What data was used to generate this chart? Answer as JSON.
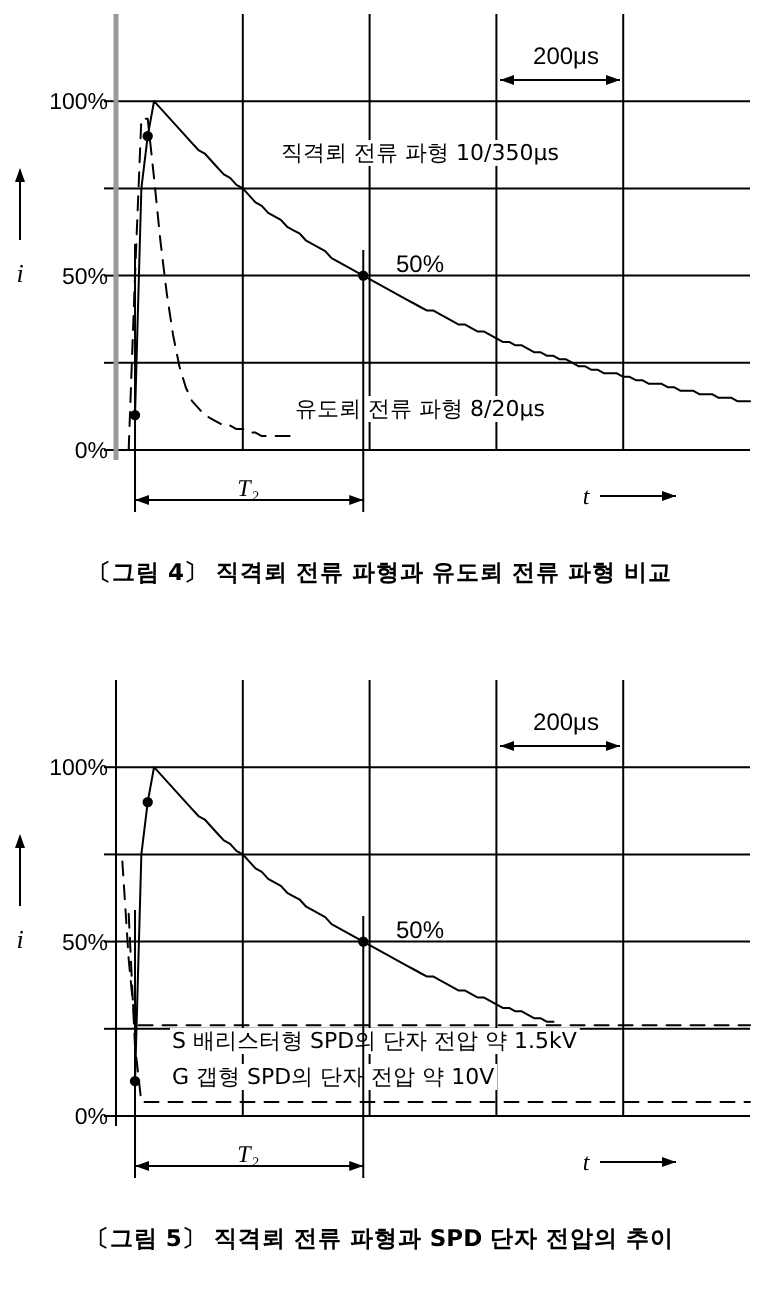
{
  "chart_data": [
    {
      "type": "line",
      "title": "〔그림 4〕 직격뢰 전류 파형과 유도뢰 전류 파형 비교",
      "xlabel": "t",
      "ylabel": "i",
      "grid": true,
      "ylim": [
        0,
        125
      ],
      "yticks": [
        {
          "value": 0,
          "label": "0%"
        },
        {
          "value": 25,
          "label": null
        },
        {
          "value": 50,
          "label": "50%"
        },
        {
          "value": 75,
          "label": null
        },
        {
          "value": 100,
          "label": "100%"
        }
      ],
      "annotations": [
        "50%",
        "200μs",
        "T₂"
      ],
      "categories": [
        null,
        null,
        null,
        null,
        null,
        null,
        null,
        null,
        null,
        null,
        null,
        null,
        null,
        null,
        null,
        null,
        null,
        null,
        null,
        null,
        null,
        null,
        null,
        null,
        null,
        null,
        null,
        null,
        null,
        null,
        null,
        null,
        null,
        null,
        null,
        null,
        null,
        null,
        null,
        null,
        null,
        null,
        null,
        null,
        null,
        null,
        null,
        null,
        null,
        null,
        null,
        null,
        null,
        null,
        null,
        null,
        null,
        null,
        null,
        null,
        null,
        null,
        null,
        null,
        null,
        null,
        null,
        null,
        null,
        null,
        null,
        null,
        null,
        null,
        null,
        null,
        null,
        null,
        null,
        null,
        null,
        null,
        null,
        null,
        null,
        null,
        null,
        null,
        null,
        null,
        null,
        null,
        null,
        null,
        null,
        null,
        null,
        null,
        null,
        null,
        null
      ],
      "series": [
        {
          "name": "직격뢰 전류 파형 10/350μs",
          "color": "#000000",
          "line_style": "solid",
          "values": [
            null,
            null,
            null,
            10,
            75,
            90,
            100,
            98,
            96,
            94,
            92,
            90,
            88,
            86,
            85,
            83,
            81,
            79,
            78,
            76,
            75,
            73,
            71,
            70,
            68,
            67,
            66,
            64,
            63,
            62,
            60,
            59,
            58,
            57,
            55,
            54,
            53,
            52,
            51,
            50,
            49,
            48,
            47,
            46,
            45,
            44,
            43,
            42,
            41,
            40,
            40,
            39,
            38,
            37,
            36,
            36,
            35,
            34,
            34,
            33,
            32,
            31,
            31,
            30,
            30,
            29,
            28,
            28,
            27,
            27,
            26,
            26,
            25,
            24,
            24,
            23,
            23,
            22,
            22,
            22,
            21,
            21,
            20,
            20,
            19,
            19,
            19,
            18,
            18,
            17,
            17,
            17,
            16,
            16,
            16,
            15,
            15,
            15,
            14,
            14,
            14
          ]
        },
        {
          "name": "유도뢰 전류 파형 8/20μs",
          "color": "#000000",
          "line_style": "dashed",
          "values": [
            null,
            null,
            0,
            50,
            95,
            95,
            78,
            60,
            45,
            33,
            24,
            18,
            14,
            12,
            10,
            9,
            8,
            7,
            7,
            6,
            6,
            5,
            5,
            4,
            4,
            4,
            4,
            4,
            4,
            null,
            null,
            null,
            null,
            null,
            null,
            null,
            null,
            null,
            null,
            null,
            null,
            null,
            null,
            null,
            null,
            null,
            null,
            null,
            null,
            null,
            null,
            null,
            null,
            null,
            null,
            null,
            null,
            null,
            null,
            null,
            null,
            null,
            null,
            null,
            null,
            null,
            null,
            null,
            null,
            null,
            null,
            null,
            null,
            null,
            null,
            null,
            null,
            null,
            null,
            null,
            null,
            null,
            null,
            null,
            null,
            null,
            null,
            null,
            null,
            null,
            null,
            null,
            null,
            null,
            null,
            null,
            null,
            null,
            null,
            null,
            null
          ]
        },
        {
          "type": "scatter",
          "color": "#000000",
          "marker": "circle",
          "values": [
            null,
            null,
            null,
            10,
            null,
            90,
            null,
            null,
            null,
            null,
            null,
            null,
            null,
            null,
            null,
            null,
            null,
            null,
            null,
            null,
            null,
            null,
            null,
            null,
            null,
            null,
            null,
            null,
            null,
            null,
            null,
            null,
            null,
            null,
            null,
            null,
            null,
            null,
            null,
            50,
            null,
            null,
            null,
            null,
            null,
            null,
            null,
            null,
            null,
            null,
            null,
            null,
            null,
            null,
            null,
            null,
            null,
            null,
            null,
            null,
            null,
            null,
            null,
            null,
            null,
            null,
            null,
            null,
            null,
            null,
            null,
            null,
            null,
            null,
            null,
            null,
            null,
            null,
            null,
            null,
            null,
            null,
            null,
            null,
            null,
            null,
            null,
            null,
            null,
            null,
            null,
            null,
            null,
            null,
            null,
            null,
            null,
            null,
            null,
            null,
            null
          ]
        }
      ]
    },
    {
      "type": "line",
      "title": "〔그림 5〕 직격뢰 전류 파형과 SPD 단자 전압의 추이",
      "xlabel": "t",
      "ylabel": "i",
      "grid": true,
      "ylim": [
        0,
        125
      ],
      "yticks": [
        {
          "value": 0,
          "label": "0%"
        },
        {
          "value": 25,
          "label": null
        },
        {
          "value": 50,
          "label": "50%"
        },
        {
          "value": 75,
          "label": null
        },
        {
          "value": 100,
          "label": "100%"
        }
      ],
      "annotations": [
        "50%",
        "200μs",
        "T₂"
      ],
      "categories": [
        null,
        null,
        null,
        null,
        null,
        null,
        null,
        null,
        null,
        null,
        null,
        null,
        null,
        null,
        null,
        null,
        null,
        null,
        null,
        null,
        null,
        null,
        null,
        null,
        null,
        null,
        null,
        null,
        null,
        null,
        null,
        null,
        null,
        null,
        null,
        null,
        null,
        null,
        null,
        null,
        null,
        null,
        null,
        null,
        null,
        null,
        null,
        null,
        null,
        null,
        null,
        null,
        null,
        null,
        null,
        null,
        null,
        null,
        null,
        null,
        null,
        null,
        null,
        null,
        null,
        null,
        null,
        null,
        null,
        null,
        null,
        null,
        null,
        null,
        null,
        null,
        null,
        null,
        null,
        null,
        null,
        null,
        null,
        null,
        null,
        null,
        null,
        null,
        null,
        null,
        null,
        null,
        null,
        null,
        null,
        null,
        null,
        null,
        null,
        null,
        null
      ],
      "series": [
        {
          "color": "#000000",
          "line_style": "solid",
          "values": [
            null,
            null,
            null,
            10,
            75,
            90,
            100,
            98,
            96,
            94,
            92,
            90,
            88,
            86,
            85,
            83,
            81,
            79,
            78,
            76,
            75,
            73,
            71,
            70,
            68,
            67,
            66,
            64,
            63,
            62,
            60,
            59,
            58,
            57,
            55,
            54,
            53,
            52,
            51,
            50,
            49,
            48,
            47,
            46,
            45,
            44,
            43,
            42,
            41,
            40,
            40,
            39,
            38,
            37,
            36,
            36,
            35,
            34,
            34,
            33,
            32,
            31,
            31,
            30,
            30,
            29,
            28,
            28,
            27,
            27,
            null,
            null,
            null,
            null,
            null,
            null,
            null,
            null,
            null,
            null,
            null,
            null,
            null,
            null,
            null,
            null,
            null,
            null,
            null,
            null,
            null,
            null,
            null,
            null,
            null,
            null,
            null,
            null,
            null,
            null,
            null
          ]
        },
        {
          "type": "scatter",
          "color": "#000000",
          "marker": "circle",
          "values": [
            null,
            null,
            null,
            10,
            null,
            90,
            null,
            null,
            null,
            null,
            null,
            null,
            null,
            null,
            null,
            null,
            null,
            null,
            null,
            null,
            null,
            null,
            null,
            null,
            null,
            null,
            null,
            null,
            null,
            null,
            null,
            null,
            null,
            null,
            null,
            null,
            null,
            null,
            null,
            50,
            null,
            null,
            null,
            null,
            null,
            null,
            null,
            null,
            null,
            null,
            null,
            null,
            null,
            null,
            null,
            null,
            null,
            null,
            null,
            null,
            null,
            null,
            null,
            null,
            null,
            null,
            null,
            null,
            null,
            null,
            null,
            null,
            null,
            null,
            null,
            null,
            null,
            null,
            null,
            null,
            null,
            null,
            null,
            null,
            null,
            null,
            null,
            null,
            null,
            null,
            null,
            null,
            null,
            null,
            null,
            null,
            null,
            null,
            null,
            null,
            null
          ]
        },
        {
          "name": "S 배리스터형 SPD의 단자 전압  약 1.5kV",
          "color": "#000000",
          "line_style": "dashed",
          "values": [
            null,
            73,
            45,
            26,
            26,
            26,
            26,
            26,
            26,
            26,
            26,
            26,
            26,
            26,
            26,
            26,
            26,
            26,
            26,
            26,
            26,
            26,
            26,
            26,
            26,
            26,
            26,
            26,
            26,
            26,
            26,
            26,
            26,
            26,
            26,
            26,
            26,
            26,
            26,
            26,
            26,
            26,
            26,
            26,
            26,
            26,
            26,
            26,
            26,
            26,
            26,
            26,
            26,
            26,
            26,
            26,
            26,
            26,
            26,
            26,
            26,
            26,
            26,
            26,
            26,
            26,
            26,
            26,
            26,
            26,
            26,
            26,
            26,
            26,
            26,
            26,
            26,
            26,
            26,
            26,
            26,
            26,
            26,
            26,
            26,
            26,
            26,
            26,
            26,
            26,
            26,
            26,
            26,
            26,
            26,
            26,
            26,
            26,
            26,
            26,
            26
          ]
        },
        {
          "name": "G 갭형 SPD의 단자 전압  약 10V",
          "color": "#000000",
          "line_style": "dashed",
          "values": [
            null,
            null,
            58,
            20,
            4,
            4,
            4,
            4,
            4,
            4,
            4,
            4,
            4,
            4,
            4,
            4,
            4,
            4,
            4,
            4,
            4,
            4,
            4,
            4,
            4,
            4,
            4,
            4,
            4,
            4,
            4,
            4,
            4,
            4,
            4,
            4,
            4,
            4,
            4,
            4,
            4,
            4,
            4,
            4,
            4,
            4,
            4,
            4,
            4,
            4,
            4,
            4,
            4,
            4,
            4,
            4,
            4,
            4,
            4,
            4,
            4,
            4,
            4,
            4,
            4,
            4,
            4,
            4,
            4,
            4,
            4,
            4,
            4,
            4,
            4,
            4,
            4,
            4,
            4,
            4,
            4,
            4,
            4,
            4,
            4,
            4,
            4,
            4,
            4,
            4,
            4,
            4,
            4,
            4,
            4,
            4,
            4,
            4,
            4,
            4,
            4
          ]
        }
      ]
    }
  ]
}
